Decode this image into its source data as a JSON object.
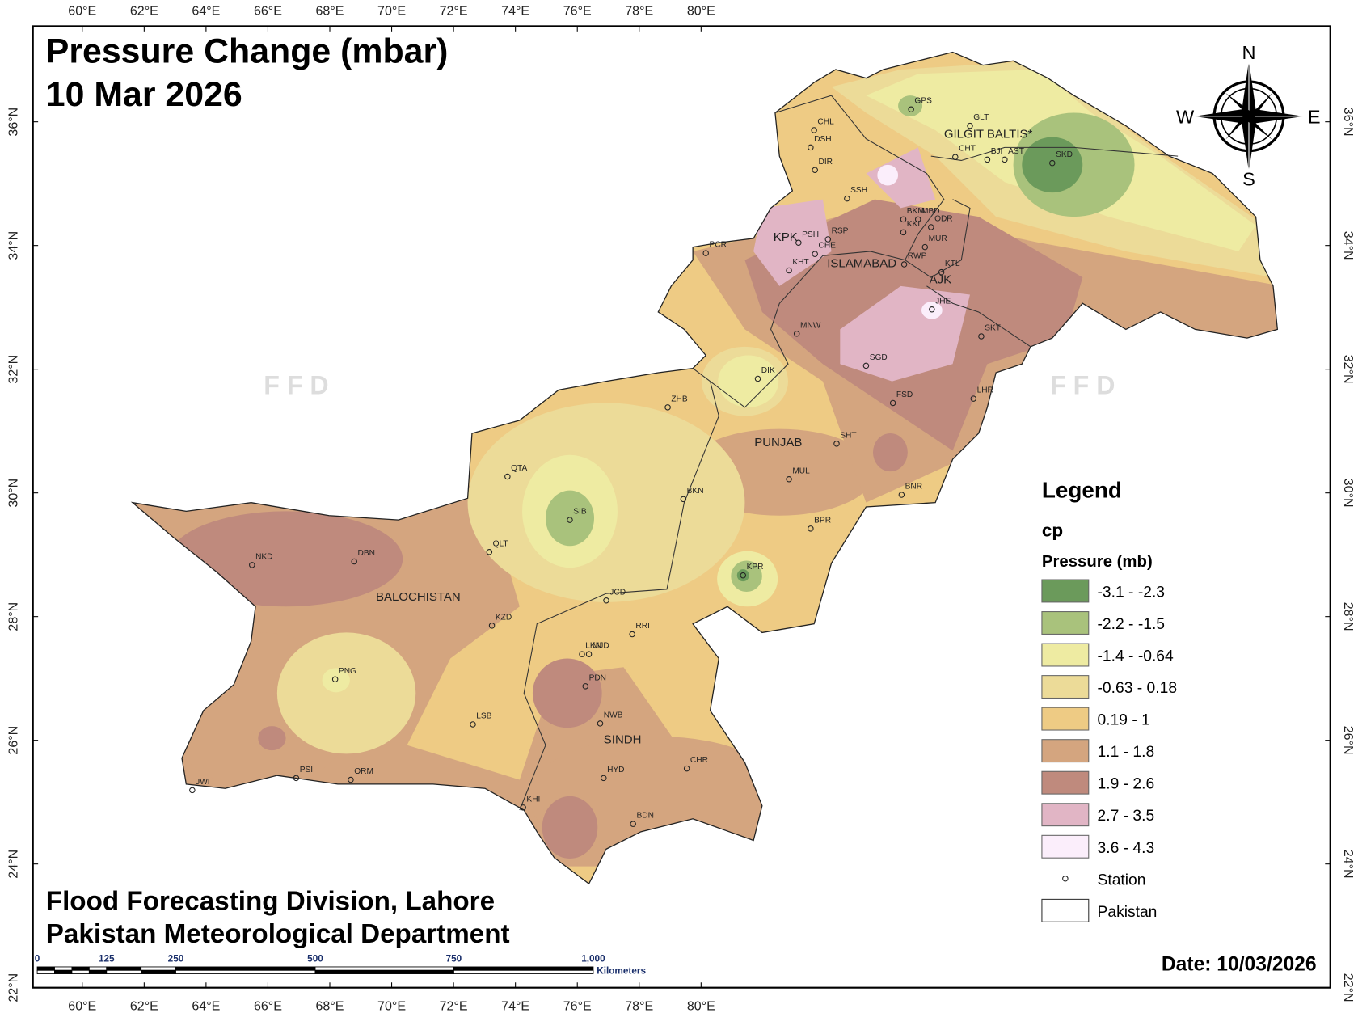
{
  "title": "Pressure Change (mbar)",
  "subtitle": "10 Mar 2026",
  "footer": [
    "Flood Forecasting Division, Lahore",
    "Pakistan Meteorological Department"
  ],
  "date": "Date: 10/03/2026",
  "lon_labels": [
    "60°E",
    "62°E",
    "64°E",
    "66°E",
    "68°E",
    "70°E",
    "72°E",
    "74°E",
    "76°E",
    "78°E",
    "80°E"
  ],
  "lat_labels": [
    "22°N",
    "24°N",
    "26°N",
    "28°N",
    "30°N",
    "32°N",
    "34°N",
    "36°N"
  ],
  "compass": [
    "N",
    "E",
    "S",
    "W"
  ],
  "watermark": "F F D",
  "regions": [
    "GILGIT BALTIS*",
    "KPK",
    "ISLAMABAD",
    "AJK",
    "PUNJAB",
    "BALOCHISTAN",
    "SINDH"
  ],
  "stations": [
    "GPS",
    "CHL",
    "GLT",
    "DSH",
    "CHT",
    "BJI",
    "AST",
    "SKD",
    "DIR",
    "SSH",
    "BKM",
    "MBD",
    "ODR",
    "KKL",
    "PSH",
    "RSP",
    "MUR",
    "CHE",
    "PCR",
    "KHT",
    "RWP",
    "KTL",
    "JHE",
    "MNW",
    "SKT",
    "SGD",
    "DIK",
    "LHR",
    "ZHB",
    "FSD",
    "SHT",
    "QTA",
    "MUL",
    "BKN",
    "BNR",
    "SIB",
    "BPR",
    "QLT",
    "NKD",
    "DBN",
    "KPR",
    "JCD",
    "KZD",
    "RRI",
    "LKN",
    "MJD",
    "PNG",
    "PDN",
    "NWB",
    "LSB",
    "CHR",
    "HYD",
    "PSI",
    "ORM",
    "JWI",
    "KHI",
    "BDN"
  ],
  "scale_bar": {
    "labels": [
      "0",
      "125",
      "250",
      "500",
      "750",
      "1,000"
    ],
    "unit": "Kilometers"
  },
  "legend": {
    "title": "Legend",
    "layer": "cp",
    "field": "Pressure (mb)",
    "classes": [
      {
        "label": "-3.1 - -2.3",
        "color": "#6b9a5b"
      },
      {
        "label": "-2.2 - -1.5",
        "color": "#a9c27c"
      },
      {
        "label": "-1.4 - -0.64",
        "color": "#eeeba2"
      },
      {
        "label": "-0.63 - 0.18",
        "color": "#ecdb98"
      },
      {
        "label": "0.19 - 1",
        "color": "#eecb84"
      },
      {
        "label": "1.1 - 1.8",
        "color": "#d4a57f"
      },
      {
        "label": "1.9 - 2.6",
        "color": "#bf8a7d"
      },
      {
        "label": "2.7 - 3.5",
        "color": "#e1b5c5"
      },
      {
        "label": "3.6 - 4.3",
        "color": "#fbeefb"
      }
    ],
    "station": "Station",
    "boundary": "Pakistan"
  }
}
